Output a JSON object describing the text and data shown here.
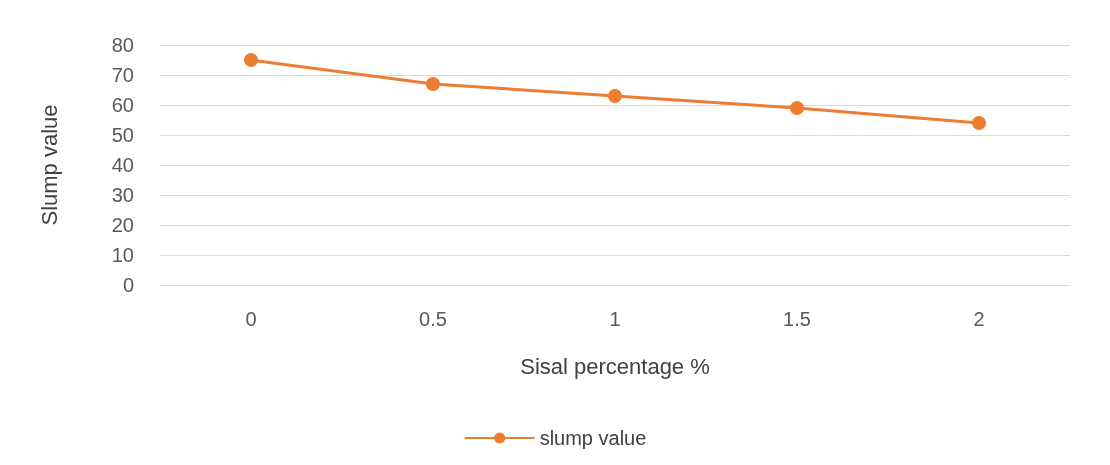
{
  "chart_data": {
    "type": "line",
    "xlabel": "Sisal percentage %",
    "ylabel": "Slump value",
    "categories": [
      "0",
      "0.5",
      "1",
      "1.5",
      "2"
    ],
    "series": [
      {
        "name": "slump value",
        "color": "#ed7d31",
        "values": [
          75,
          67,
          63,
          59,
          54
        ]
      }
    ],
    "ylim": [
      0,
      80
    ],
    "yticks": [
      0,
      10,
      20,
      30,
      40,
      50,
      60,
      70,
      80
    ],
    "grid": "y",
    "legend": "bottom",
    "marker": "circle",
    "line_style": "solid"
  }
}
